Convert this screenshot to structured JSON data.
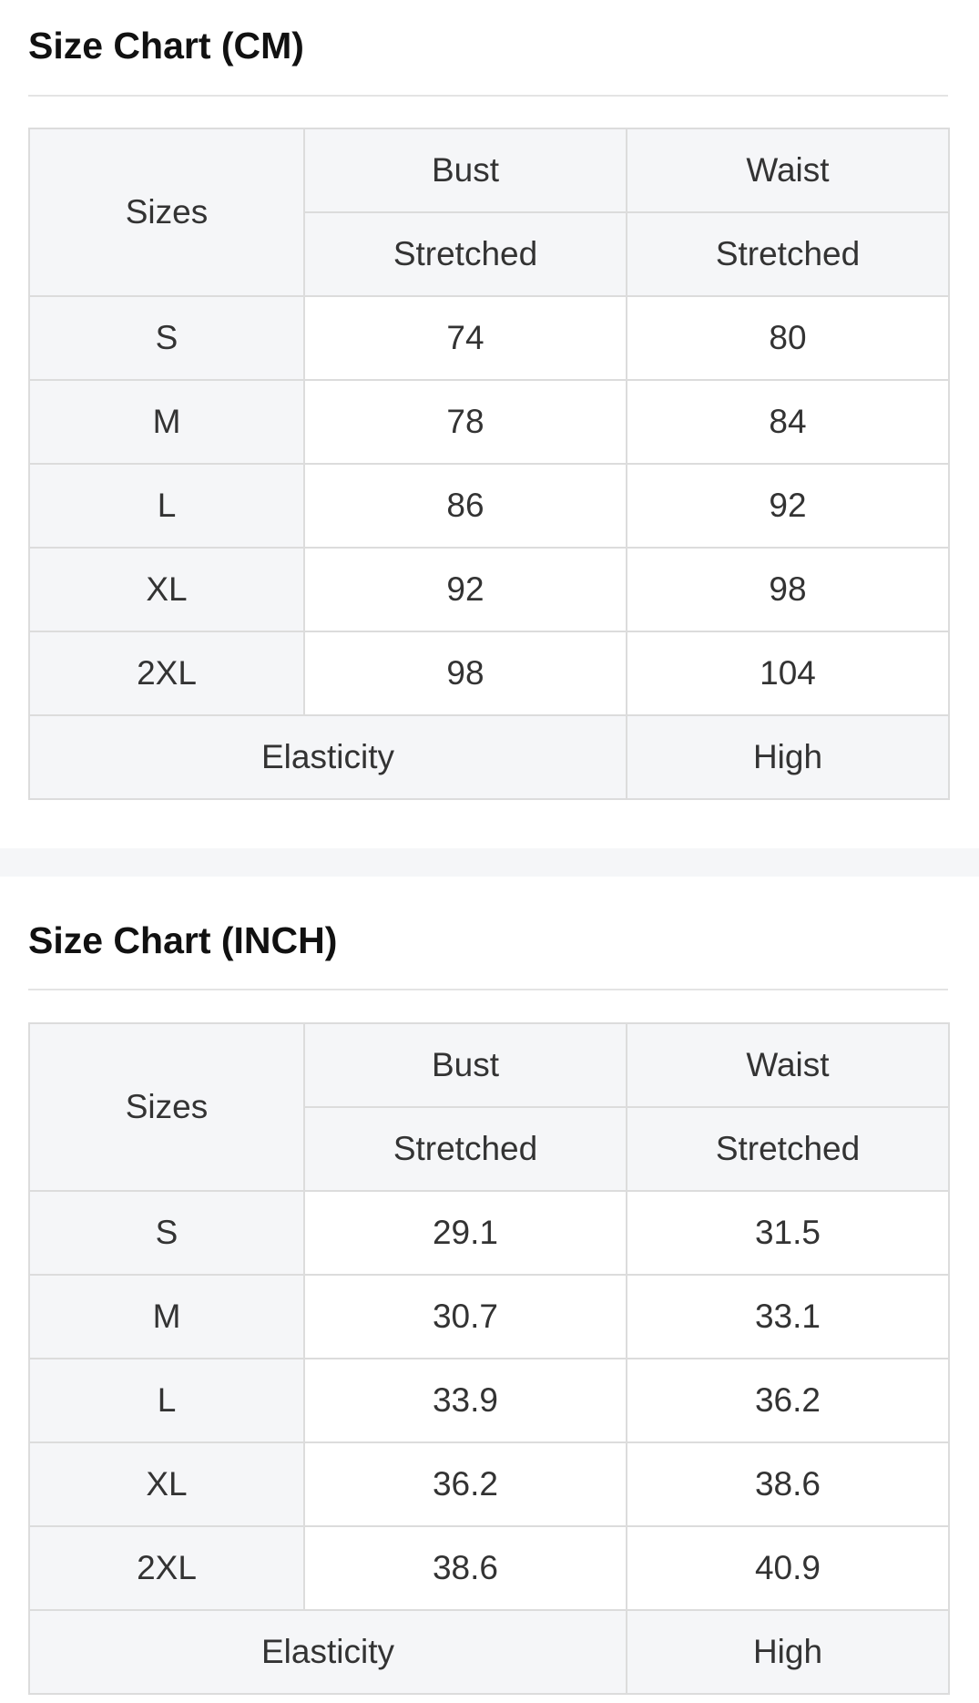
{
  "charts": [
    {
      "title": "Size Chart (CM)",
      "headers": {
        "sizes": "Sizes",
        "bust": "Bust",
        "waist": "Waist",
        "bust_sub": "Stretched",
        "waist_sub": "Stretched"
      },
      "rows": [
        {
          "size": "S",
          "bust": "74",
          "waist": "80"
        },
        {
          "size": "M",
          "bust": "78",
          "waist": "84"
        },
        {
          "size": "L",
          "bust": "86",
          "waist": "92"
        },
        {
          "size": "XL",
          "bust": "92",
          "waist": "98"
        },
        {
          "size": "2XL",
          "bust": "98",
          "waist": "104"
        }
      ],
      "elasticity_label": "Elasticity",
      "elasticity_value": "High"
    },
    {
      "title": "Size Chart (INCH)",
      "headers": {
        "sizes": "Sizes",
        "bust": "Bust",
        "waist": "Waist",
        "bust_sub": "Stretched",
        "waist_sub": "Stretched"
      },
      "rows": [
        {
          "size": "S",
          "bust": "29.1",
          "waist": "31.5"
        },
        {
          "size": "M",
          "bust": "30.7",
          "waist": "33.1"
        },
        {
          "size": "L",
          "bust": "33.9",
          "waist": "36.2"
        },
        {
          "size": "XL",
          "bust": "36.2",
          "waist": "38.6"
        },
        {
          "size": "2XL",
          "bust": "38.6",
          "waist": "40.9"
        }
      ],
      "elasticity_label": "Elasticity",
      "elasticity_value": "High"
    }
  ]
}
